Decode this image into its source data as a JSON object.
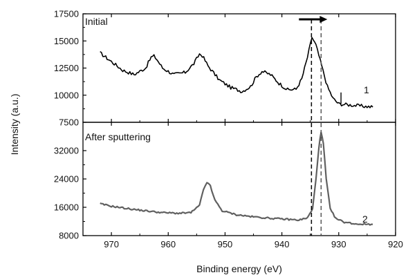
{
  "chart_data": [
    {
      "type": "line",
      "panel": "top",
      "title": "Initial",
      "xlabel": "Binding energy (eV)",
      "ylabel": "Intensity (a.u.)",
      "xlim": [
        975,
        920
      ],
      "ylim": [
        7500,
        17500
      ],
      "x_reversed": true,
      "xticks": [
        970,
        960,
        950,
        940,
        930,
        920
      ],
      "yticks": [
        7500,
        10000,
        12500,
        15000,
        17500
      ],
      "series": [
        {
          "name": "1",
          "color": "#000000",
          "points": [
            [
              972,
              13900
            ],
            [
              970,
              13100
            ],
            [
              968,
              12300
            ],
            [
              966,
              11900
            ],
            [
              964,
              12500
            ],
            [
              963,
              13500
            ],
            [
              962.5,
              13600
            ],
            [
              962,
              13300
            ],
            [
              961,
              12500
            ],
            [
              959,
              11900
            ],
            [
              957,
              12100
            ],
            [
              955.5,
              12900
            ],
            [
              954.5,
              13800
            ],
            [
              954,
              13650
            ],
            [
              953,
              12700
            ],
            [
              951,
              11400
            ],
            [
              949,
              10700
            ],
            [
              947,
              10350
            ],
            [
              945.5,
              10800
            ],
            [
              944.5,
              11700
            ],
            [
              943.5,
              12200
            ],
            [
              942,
              11900
            ],
            [
              940.5,
              11100
            ],
            [
              939,
              10500
            ],
            [
              937.5,
              10550
            ],
            [
              936.5,
              11500
            ],
            [
              935.5,
              13500
            ],
            [
              934.7,
              15350
            ],
            [
              934,
              14600
            ],
            [
              933,
              12700
            ],
            [
              932,
              10800
            ],
            [
              931,
              9700
            ],
            [
              930,
              9200
            ],
            [
              929,
              9150
            ],
            [
              928,
              9100
            ],
            [
              926,
              9000
            ],
            [
              924,
              8900
            ]
          ]
        }
      ]
    },
    {
      "type": "line",
      "panel": "bottom",
      "title": "After sputtering",
      "xlabel": "Binding energy (eV)",
      "ylabel": "Intensity (a.u.)",
      "xlim": [
        975,
        920
      ],
      "ylim": [
        8000,
        40000
      ],
      "x_reversed": true,
      "xticks": [
        970,
        960,
        950,
        940,
        930,
        920
      ],
      "yticks": [
        8000,
        16000,
        24000,
        32000
      ],
      "series": [
        {
          "name": "2",
          "color": "#606060",
          "points": [
            [
              972,
              17000
            ],
            [
              970,
              16300
            ],
            [
              967,
              15600
            ],
            [
              964,
              15000
            ],
            [
              961,
              14500
            ],
            [
              958,
              14300
            ],
            [
              956,
              14500
            ],
            [
              954.5,
              16500
            ],
            [
              953.8,
              21000
            ],
            [
              953.2,
              23100
            ],
            [
              952.6,
              22000
            ],
            [
              951.8,
              18000
            ],
            [
              950.5,
              15000
            ],
            [
              948,
              13900
            ],
            [
              945,
              13300
            ],
            [
              942,
              12900
            ],
            [
              939,
              12600
            ],
            [
              937,
              12400
            ],
            [
              935.5,
              13000
            ],
            [
              934.6,
              15500
            ],
            [
              934,
              24000
            ],
            [
              933.5,
              33000
            ],
            [
              933.1,
              37200
            ],
            [
              932.7,
              34000
            ],
            [
              932.2,
              24000
            ],
            [
              931.5,
              15500
            ],
            [
              930.5,
              12800
            ],
            [
              929,
              11800
            ],
            [
              927,
              11300
            ],
            [
              924,
              11200
            ]
          ]
        }
      ]
    }
  ],
  "labels": {
    "top_panel": "Initial",
    "bottom_panel": "After sputtering",
    "curve_1": "1",
    "curve_2": "2",
    "xlabel": "Binding energy (eV)",
    "ylabel": "Intensity (a.u.)"
  },
  "annotations": {
    "dashed_lines_x": [
      934.8,
      933.1
    ],
    "arrow_from_x": 937,
    "arrow_to_x": 932,
    "arrow_direction": "toward lower binding energy"
  },
  "colors": {
    "axes": "#000000",
    "series_1": "#000000",
    "series_2": "#606060"
  }
}
